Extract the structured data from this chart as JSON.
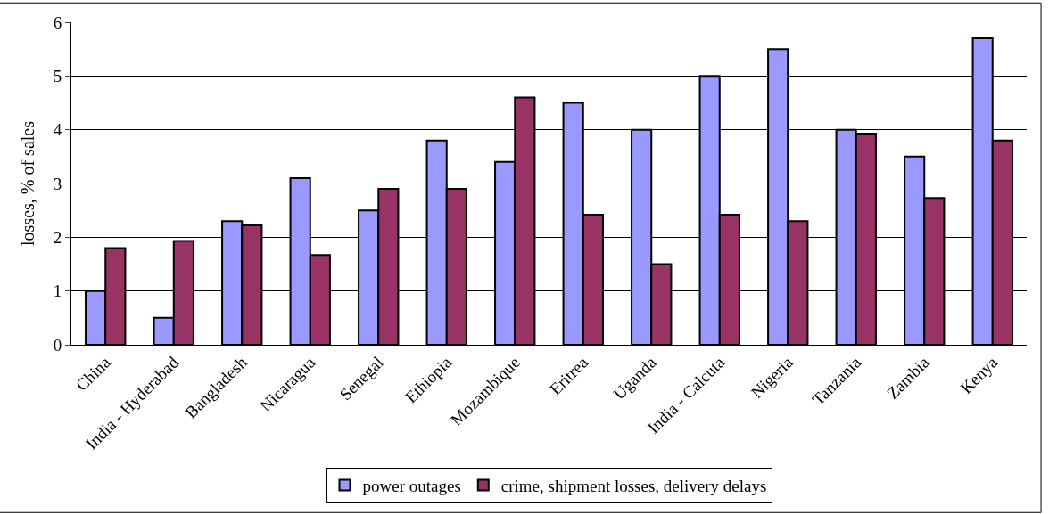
{
  "chart_data": {
    "type": "bar",
    "ylabel": "losses, % of sales",
    "categories": [
      "China",
      "India - Hyderabad",
      "Bangladesh",
      "Nicaragua",
      "Senegal",
      "Ethiopia",
      "Mozambique",
      "Eritrea",
      "Uganda",
      "India - Calcuta",
      "Nigeria",
      "Tanzania",
      "Zambia",
      "Kenya"
    ],
    "series": [
      {
        "name": "power outages",
        "color": "#9999ff",
        "values": [
          1.0,
          0.5,
          2.3,
          3.1,
          2.5,
          3.8,
          3.4,
          4.5,
          4.0,
          5.0,
          5.5,
          4.0,
          3.5,
          5.7
        ]
      },
      {
        "name": "crime, shipment losses, delivery delays",
        "color": "#993366",
        "values": [
          1.8,
          1.93,
          2.22,
          1.67,
          2.9,
          2.9,
          4.6,
          2.42,
          1.5,
          2.42,
          2.3,
          3.93,
          2.73,
          3.8
        ]
      }
    ],
    "ylim": [
      0,
      6
    ],
    "yticks": [
      0,
      1,
      2,
      3,
      4,
      5,
      6
    ],
    "grid": "y",
    "legend": "bottom"
  }
}
